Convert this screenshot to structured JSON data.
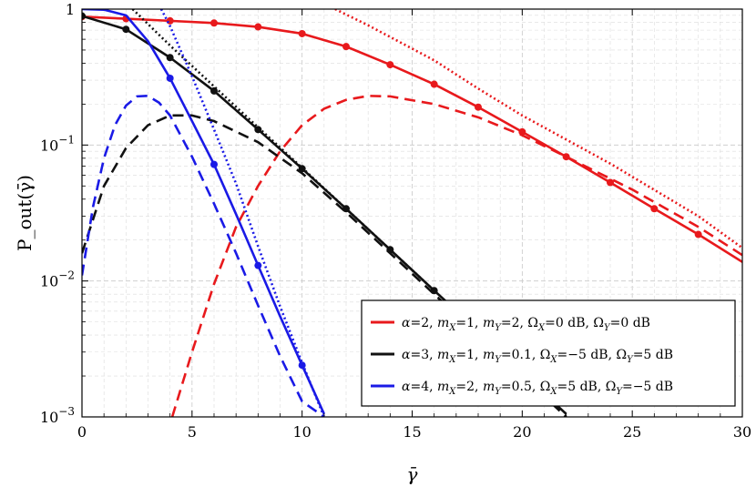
{
  "chart_data": {
    "type": "line",
    "title": "",
    "xlabel": "γ̄",
    "ylabel": "P_out(γ̄)",
    "xlim": [
      0,
      30
    ],
    "ylim": [
      0.001,
      1
    ],
    "yscale": "log",
    "grid": true,
    "legend_position": "bottom-right",
    "x_ticks": [
      0,
      5,
      10,
      15,
      20,
      25,
      30
    ],
    "y_ticks": [
      {
        "value": 1,
        "label": "1"
      },
      {
        "value": 0.1,
        "label": "10",
        "exp": "−1"
      },
      {
        "value": 0.01,
        "label": "10",
        "exp": "−2"
      },
      {
        "value": 0.001,
        "label": "10",
        "exp": "−3"
      }
    ],
    "legend": [
      {
        "color": "#e8191c",
        "parts": [
          [
            "i",
            "α"
          ],
          [
            "r",
            "=2, "
          ],
          [
            "i",
            "m"
          ],
          [
            "s",
            "X"
          ],
          [
            "r",
            "=1, "
          ],
          [
            "i",
            "m"
          ],
          [
            "s",
            "Y"
          ],
          [
            "r",
            "=2, Ω"
          ],
          [
            "s",
            "X"
          ],
          [
            "r",
            "=0 dB, Ω"
          ],
          [
            "s",
            "Y"
          ],
          [
            "r",
            "=0 dB"
          ]
        ]
      },
      {
        "color": "#111111",
        "parts": [
          [
            "i",
            "α"
          ],
          [
            "r",
            "=3, "
          ],
          [
            "i",
            "m"
          ],
          [
            "s",
            "X"
          ],
          [
            "r",
            "=1, "
          ],
          [
            "i",
            "m"
          ],
          [
            "s",
            "Y"
          ],
          [
            "r",
            "=0.1, Ω"
          ],
          [
            "s",
            "X"
          ],
          [
            "r",
            "=−5 dB, Ω"
          ],
          [
            "s",
            "Y"
          ],
          [
            "r",
            "=5 dB"
          ]
        ]
      },
      {
        "color": "#1a1ae6",
        "parts": [
          [
            "i",
            "α"
          ],
          [
            "r",
            "=4, "
          ],
          [
            "i",
            "m"
          ],
          [
            "s",
            "X"
          ],
          [
            "r",
            "=2, "
          ],
          [
            "i",
            "m"
          ],
          [
            "s",
            "Y"
          ],
          [
            "r",
            "=0.5, Ω"
          ],
          [
            "s",
            "X"
          ],
          [
            "r",
            "=5 dB, Ω"
          ],
          [
            "s",
            "Y"
          ],
          [
            "r",
            "=−5 dB"
          ]
        ]
      }
    ],
    "series": [
      {
        "kind": "analytical",
        "color": "#e8191c",
        "style": "solid",
        "x": [
          0,
          2,
          4,
          6,
          8,
          10,
          12,
          14,
          16,
          18,
          20,
          22,
          24,
          26,
          28,
          30
        ],
        "y": [
          0.88,
          0.85,
          0.82,
          0.79,
          0.74,
          0.66,
          0.53,
          0.39,
          0.28,
          0.19,
          0.125,
          0.082,
          0.053,
          0.034,
          0.022,
          0.0138
        ]
      },
      {
        "kind": "simulation",
        "color": "#e8191c",
        "marker": "circle",
        "x": [
          0,
          2,
          4,
          6,
          8,
          10,
          12,
          14,
          16,
          18,
          20,
          22,
          24,
          26,
          28
        ],
        "y": [
          0.88,
          0.85,
          0.82,
          0.79,
          0.74,
          0.66,
          0.53,
          0.39,
          0.28,
          0.19,
          0.125,
          0.082,
          0.053,
          0.034,
          0.022
        ]
      },
      {
        "kind": "asymptotic",
        "color": "#e8191c",
        "style": "dotted",
        "x": [
          11.5,
          13,
          16,
          18,
          20,
          24,
          28,
          30
        ],
        "y": [
          1.0,
          0.76,
          0.42,
          0.26,
          0.165,
          0.073,
          0.03,
          0.0175
        ]
      },
      {
        "kind": "dashed",
        "color": "#e8191c",
        "style": "dashed",
        "x": [
          4.1,
          5,
          6,
          7,
          8,
          9,
          10,
          11,
          12,
          13,
          14,
          16,
          18,
          20,
          22,
          25,
          28,
          30
        ],
        "y": [
          0.001,
          0.003,
          0.0095,
          0.025,
          0.05,
          0.09,
          0.14,
          0.185,
          0.215,
          0.23,
          0.228,
          0.2,
          0.16,
          0.118,
          0.082,
          0.047,
          0.025,
          0.0155
        ]
      },
      {
        "kind": "analytical",
        "color": "#111111",
        "style": "solid",
        "x": [
          0,
          2,
          4,
          6,
          8,
          10,
          12,
          14,
          16,
          18,
          20,
          22
        ],
        "y": [
          0.89,
          0.71,
          0.44,
          0.25,
          0.13,
          0.067,
          0.034,
          0.017,
          0.0085,
          0.0043,
          0.0021,
          0.00105
        ]
      },
      {
        "kind": "simulation",
        "color": "#111111",
        "marker": "circle",
        "x": [
          0,
          2,
          4,
          6,
          8,
          10,
          12,
          14,
          16
        ],
        "y": [
          0.89,
          0.71,
          0.44,
          0.25,
          0.13,
          0.067,
          0.034,
          0.017,
          0.0085
        ]
      },
      {
        "kind": "asymptotic",
        "color": "#111111",
        "style": "dotted",
        "x": [
          2.3,
          4,
          6,
          8,
          10,
          12,
          14,
          16
        ],
        "y": [
          1.0,
          0.54,
          0.27,
          0.135,
          0.068,
          0.034,
          0.017,
          0.0085
        ]
      },
      {
        "kind": "dashed",
        "color": "#111111",
        "style": "dashed",
        "x": [
          0,
          1,
          2,
          3,
          4,
          5,
          6,
          8,
          10,
          12,
          14,
          16,
          18,
          20,
          22
        ],
        "y": [
          0.016,
          0.05,
          0.095,
          0.14,
          0.165,
          0.165,
          0.15,
          0.105,
          0.062,
          0.032,
          0.016,
          0.008,
          0.004,
          0.002,
          0.001
        ]
      },
      {
        "kind": "analytical",
        "color": "#1a1ae6",
        "style": "solid",
        "x": [
          0,
          1,
          2,
          3,
          4,
          5,
          6,
          7,
          8,
          9,
          10,
          11
        ],
        "y": [
          1.0,
          0.99,
          0.9,
          0.58,
          0.31,
          0.15,
          0.072,
          0.031,
          0.013,
          0.0055,
          0.0024,
          0.00105
        ]
      },
      {
        "kind": "simulation",
        "color": "#1a1ae6",
        "marker": "circle",
        "x": [
          4,
          6,
          8,
          10
        ],
        "y": [
          0.31,
          0.072,
          0.013,
          0.0024
        ]
      },
      {
        "kind": "asymptotic",
        "color": "#1a1ae6",
        "style": "dotted",
        "x": [
          3.6,
          4,
          5,
          6,
          7,
          8,
          9,
          10,
          11
        ],
        "y": [
          1.0,
          0.75,
          0.32,
          0.13,
          0.052,
          0.018,
          0.0065,
          0.0025,
          0.001
        ]
      },
      {
        "kind": "dashed",
        "color": "#1a1ae6",
        "style": "dashed",
        "x": [
          0,
          0.5,
          1,
          1.5,
          2,
          2.5,
          3,
          3.5,
          4,
          5,
          6,
          7,
          8,
          9,
          10,
          11
        ],
        "y": [
          0.011,
          0.035,
          0.08,
          0.14,
          0.195,
          0.228,
          0.23,
          0.205,
          0.165,
          0.082,
          0.037,
          0.016,
          0.0066,
          0.0028,
          0.0013,
          0.001
        ]
      }
    ]
  }
}
